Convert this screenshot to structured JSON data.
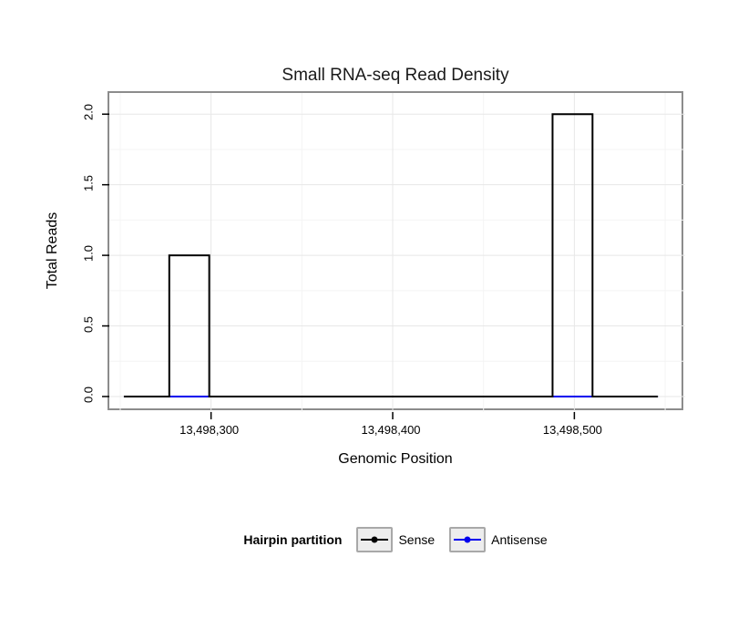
{
  "page": {
    "title": "Small RNA-seq Read Density"
  },
  "chart_data": {
    "type": "line",
    "title": "Small RNA-seq Read Density",
    "xlabel": "Genomic Position",
    "ylabel": "Total Reads",
    "grid": true,
    "legend_position": "bottom",
    "x_axis": {
      "min": 13498244,
      "max": 13498561,
      "ticks": [
        13498300,
        13498400,
        13498500
      ],
      "tick_labels": [
        "13,498,300",
        "13,498,400",
        "13,498,500"
      ],
      "minor_ticks": [
        13498250,
        13498350,
        13498450,
        13498550
      ]
    },
    "y_axis": {
      "min": -0.11,
      "max": 2.15,
      "ticks": [
        0,
        0.5,
        1,
        1.5,
        2
      ],
      "tick_labels": [
        "0.0",
        "0.5",
        "1.0",
        "1.5",
        "2.0"
      ],
      "minor_ticks": [
        0.25,
        0.75,
        1.25,
        1.75
      ]
    },
    "series": [
      {
        "name": "Sense",
        "color": "#000000",
        "points": [
          [
            13498252,
            0
          ],
          [
            13498277,
            0
          ],
          [
            13498277,
            1
          ],
          [
            13498299,
            1
          ],
          [
            13498299,
            0
          ],
          [
            13498488,
            0
          ],
          [
            13498488,
            2
          ],
          [
            13498510,
            2
          ],
          [
            13498510,
            0
          ],
          [
            13498546,
            0
          ]
        ]
      },
      {
        "name": "Antisense",
        "color": "#0000ee",
        "points": [
          [
            13498252,
            0
          ],
          [
            13498546,
            0
          ]
        ]
      }
    ],
    "legend": {
      "title": "Hairpin partition",
      "entries": [
        {
          "label": "Sense",
          "color": "#000000"
        },
        {
          "label": "Antisense",
          "color": "#0000ee"
        }
      ]
    },
    "colors": {
      "grid_major": "#e7e7e7",
      "grid_minor": "#f4f4f4",
      "panel_border": "#8c8c8c"
    }
  }
}
